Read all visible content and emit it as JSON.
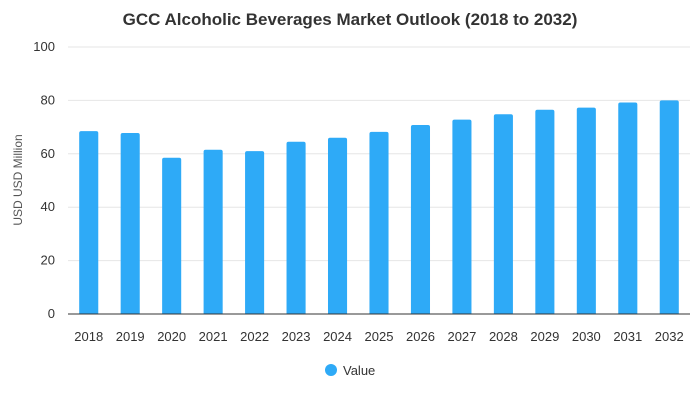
{
  "chart_data": {
    "type": "bar",
    "title": "GCC Alcoholic Beverages Market Outlook (2018 to 2032)",
    "xlabel": "",
    "ylabel": "USD USD Million",
    "categories": [
      "2018",
      "2019",
      "2020",
      "2021",
      "2022",
      "2023",
      "2024",
      "2025",
      "2026",
      "2027",
      "2028",
      "2029",
      "2030",
      "2031",
      "2032"
    ],
    "series": [
      {
        "name": "Value",
        "values": [
          68.5,
          67.8,
          58.5,
          61.5,
          61.0,
          64.5,
          66.0,
          68.2,
          70.8,
          72.8,
          74.8,
          76.5,
          77.3,
          79.2,
          80.0
        ]
      }
    ],
    "ylim": [
      0,
      100
    ],
    "yticks": [
      0,
      20,
      40,
      60,
      80,
      100
    ],
    "grid": true,
    "legend": "bottom-center",
    "colors": {
      "bar": "#2eaaf7",
      "grid": "#e6e6e6",
      "axis": "#333333"
    }
  }
}
